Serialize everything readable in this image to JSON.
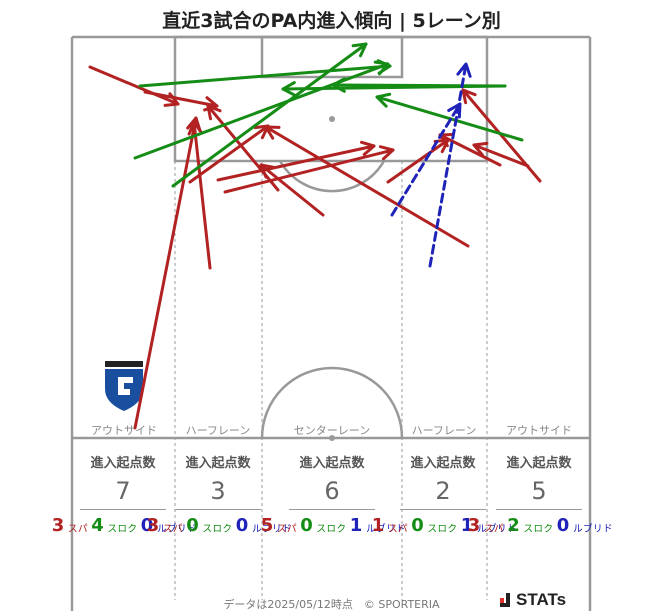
{
  "title": "直近3試合のPA内進入傾向 | 5レーン別",
  "lanes": [
    {
      "name": "アウトサイド",
      "header": "進入起点数",
      "total": "7",
      "pass": "3",
      "cross": "4",
      "dribble": "0"
    },
    {
      "name": "ハーフレーン",
      "header": "進入起点数",
      "total": "3",
      "pass": "3",
      "cross": "0",
      "dribble": "0"
    },
    {
      "name": "センターレーン",
      "header": "進入起点数",
      "total": "6",
      "pass": "5",
      "cross": "0",
      "dribble": "1"
    },
    {
      "name": "ハーフレーン",
      "header": "進入起点数",
      "total": "2",
      "pass": "1",
      "cross": "0",
      "dribble": "1"
    },
    {
      "name": "アウトサイド",
      "header": "進入起点数",
      "total": "5",
      "pass": "3",
      "cross": "2",
      "dribble": "0"
    }
  ],
  "labels": {
    "pass": "パス",
    "cross": "クロス",
    "dribble": "ドリブル"
  },
  "footer": "データは2025/05/12時点　© SPORTERIA",
  "brand": "STATs",
  "colors": {
    "pass": "#b22222",
    "cross": "#158c15",
    "dribble": "#1f23b8",
    "lines": "#999999"
  },
  "chart_data": {
    "type": "arrow-map",
    "title": "直近3試合のPA内進入傾向 | 5レーン別",
    "categories": [
      "アウトサイド",
      "ハーフレーン",
      "センターレーン",
      "ハーフレーン",
      "アウトサイド"
    ],
    "series": [
      {
        "name": "パス",
        "values": [
          3,
          3,
          5,
          1,
          3
        ]
      },
      {
        "name": "クロス",
        "values": [
          4,
          0,
          0,
          0,
          2
        ]
      },
      {
        "name": "ドリブル",
        "values": [
          0,
          0,
          1,
          1,
          0
        ]
      }
    ],
    "totals": [
      7,
      3,
      6,
      2,
      5
    ],
    "arrows": [
      {
        "type": "pass",
        "from": [
          90,
          67
        ],
        "to": [
          178,
          104
        ]
      },
      {
        "type": "pass",
        "from": [
          145,
          92
        ],
        "to": [
          217,
          106
        ]
      },
      {
        "type": "pass",
        "from": [
          135,
          428
        ],
        "to": [
          196,
          118
        ]
      },
      {
        "type": "pass",
        "from": [
          210,
          268
        ],
        "to": [
          194,
          122
        ]
      },
      {
        "type": "pass",
        "from": [
          278,
          190
        ],
        "to": [
          208,
          106
        ]
      },
      {
        "type": "pass",
        "from": [
          323,
          215
        ],
        "to": [
          261,
          165
        ]
      },
      {
        "type": "pass",
        "from": [
          190,
          182
        ],
        "to": [
          268,
          126
        ]
      },
      {
        "type": "pass",
        "from": [
          468,
          246
        ],
        "to": [
          266,
          127
        ]
      },
      {
        "type": "pass",
        "from": [
          225,
          192
        ],
        "to": [
          393,
          150
        ]
      },
      {
        "type": "pass",
        "from": [
          218,
          180
        ],
        "to": [
          374,
          146
        ]
      },
      {
        "type": "pass",
        "from": [
          388,
          182
        ],
        "to": [
          448,
          140
        ]
      },
      {
        "type": "pass",
        "from": [
          540,
          181
        ],
        "to": [
          463,
          90
        ]
      },
      {
        "type": "pass",
        "from": [
          528,
          166
        ],
        "to": [
          474,
          145
        ]
      },
      {
        "type": "pass",
        "from": [
          500,
          165
        ],
        "to": [
          440,
          135
        ]
      },
      {
        "type": "cross",
        "from": [
          140,
          86
        ],
        "to": [
          390,
          66
        ]
      },
      {
        "type": "cross",
        "from": [
          135,
          158
        ],
        "to": [
          388,
          64
        ]
      },
      {
        "type": "cross",
        "from": [
          173,
          186
        ],
        "to": [
          366,
          44
        ]
      },
      {
        "type": "cross",
        "from": [
          505,
          86
        ],
        "to": [
          283,
          89
        ]
      },
      {
        "type": "cross",
        "from": [
          505,
          86
        ],
        "to": [
          333,
          85
        ]
      },
      {
        "type": "cross",
        "from": [
          522,
          140
        ],
        "to": [
          377,
          97
        ]
      },
      {
        "type": "dribble",
        "from": [
          392,
          215
        ],
        "to": [
          460,
          104
        ]
      },
      {
        "type": "dribble",
        "from": [
          430,
          266
        ],
        "to": [
          466,
          64
        ]
      }
    ]
  }
}
